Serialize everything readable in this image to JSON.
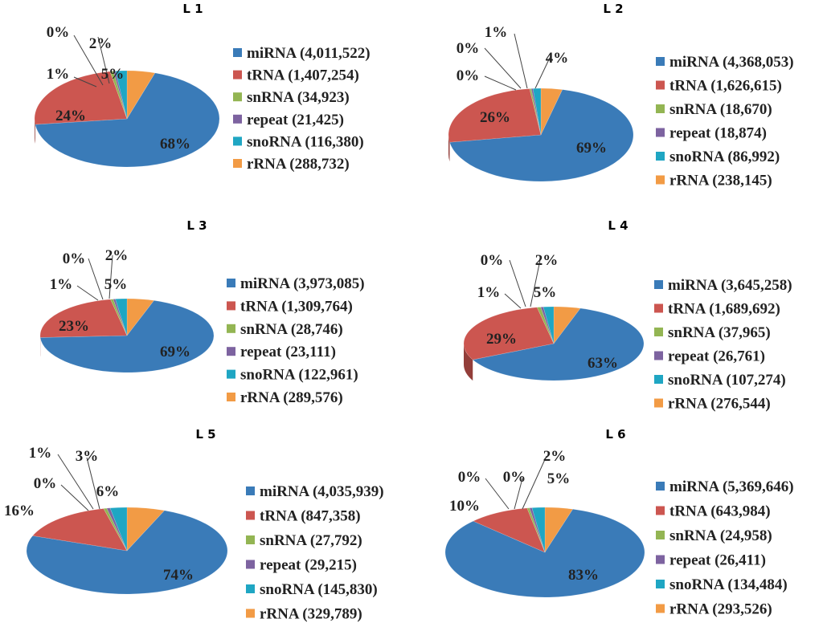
{
  "colors": {
    "miRNA": "#3a7bb8",
    "tRNA": "#cc5650",
    "snRNA": "#93b553",
    "repeat": "#7d63a0",
    "snoRNA": "#1fa6c3",
    "rRNA": "#f29b45"
  },
  "chart_data": [
    {
      "type": "pie",
      "title": "L 1",
      "series": [
        {
          "name": "miRNA",
          "value": 4011522,
          "label": "miRNA (4,011,522)",
          "pct": "68%"
        },
        {
          "name": "tRNA",
          "value": 1407254,
          "label": "tRNA (1,407,254)",
          "pct": "24%"
        },
        {
          "name": "snRNA",
          "value": 34923,
          "label": "snRNA (34,923)",
          "pct": "1%"
        },
        {
          "name": "repeat",
          "value": 21425,
          "label": "repeat (21,425)",
          "pct": "0%"
        },
        {
          "name": "snoRNA",
          "value": 116380,
          "label": "snoRNA (116,380)",
          "pct": "2%"
        },
        {
          "name": "rRNA",
          "value": 288732,
          "label": "rRNA (288,732)",
          "pct": "5%"
        }
      ]
    },
    {
      "type": "pie",
      "title": "L 2",
      "series": [
        {
          "name": "miRNA",
          "value": 4368053,
          "label": "miRNA (4,368,053)",
          "pct": "69%"
        },
        {
          "name": "tRNA",
          "value": 1626615,
          "label": "tRNA (1,626,615)",
          "pct": "26%"
        },
        {
          "name": "snRNA",
          "value": 18670,
          "label": "snRNA (18,670)",
          "pct": "0%"
        },
        {
          "name": "repeat",
          "value": 18874,
          "label": "repeat (18,874)",
          "pct": "0%"
        },
        {
          "name": "snoRNA",
          "value": 86992,
          "label": "snoRNA (86,992)",
          "pct": "1%"
        },
        {
          "name": "rRNA",
          "value": 238145,
          "label": "rRNA (238,145)",
          "pct": "4%"
        }
      ]
    },
    {
      "type": "pie",
      "title": "L 3",
      "series": [
        {
          "name": "miRNA",
          "value": 3973085,
          "label": "miRNA (3,973,085)",
          "pct": "69%"
        },
        {
          "name": "tRNA",
          "value": 1309764,
          "label": "tRNA (1,309,764)",
          "pct": "23%"
        },
        {
          "name": "snRNA",
          "value": 28746,
          "label": "snRNA (28,746)",
          "pct": "1%"
        },
        {
          "name": "repeat",
          "value": 23111,
          "label": "repeat (23,111)",
          "pct": "0%"
        },
        {
          "name": "snoRNA",
          "value": 122961,
          "label": "snoRNA (122,961)",
          "pct": "2%"
        },
        {
          "name": "rRNA",
          "value": 289576,
          "label": "rRNA (289,576)",
          "pct": "5%"
        }
      ]
    },
    {
      "type": "pie",
      "title": "L 4",
      "series": [
        {
          "name": "miRNA",
          "value": 3645258,
          "label": "miRNA (3,645,258)",
          "pct": "63%"
        },
        {
          "name": "tRNA",
          "value": 1689692,
          "label": "tRNA (1,689,692)",
          "pct": "29%"
        },
        {
          "name": "snRNA",
          "value": 37965,
          "label": "snRNA (37,965)",
          "pct": "1%"
        },
        {
          "name": "repeat",
          "value": 26761,
          "label": "repeat (26,761)",
          "pct": "0%"
        },
        {
          "name": "snoRNA",
          "value": 107274,
          "label": "snoRNA (107,274)",
          "pct": "2%"
        },
        {
          "name": "rRNA",
          "value": 276544,
          "label": "rRNA (276,544)",
          "pct": "5%"
        }
      ]
    },
    {
      "type": "pie",
      "title": "L 5",
      "series": [
        {
          "name": "miRNA",
          "value": 4035939,
          "label": "miRNA (4,035,939)",
          "pct": "74%"
        },
        {
          "name": "tRNA",
          "value": 847358,
          "label": "tRNA (847,358)",
          "pct": "16%"
        },
        {
          "name": "snRNA",
          "value": 27792,
          "label": "snRNA (27,792)",
          "pct": "0%"
        },
        {
          "name": "repeat",
          "value": 29215,
          "label": "repeat (29,215)",
          "pct": "1%"
        },
        {
          "name": "snoRNA",
          "value": 145830,
          "label": "snoRNA (145,830)",
          "pct": "3%"
        },
        {
          "name": "rRNA",
          "value": 329789,
          "label": "rRNA (329,789)",
          "pct": "6%"
        }
      ]
    },
    {
      "type": "pie",
      "title": "L 6",
      "series": [
        {
          "name": "miRNA",
          "value": 5369646,
          "label": "miRNA (5,369,646)",
          "pct": "83%"
        },
        {
          "name": "tRNA",
          "value": 643984,
          "label": "tRNA (643,984)",
          "pct": "10%"
        },
        {
          "name": "snRNA",
          "value": 24958,
          "label": "snRNA (24,958)",
          "pct": "0%"
        },
        {
          "name": "repeat",
          "value": 26411,
          "label": "repeat (26,411)",
          "pct": "0%"
        },
        {
          "name": "snoRNA",
          "value": 134484,
          "label": "snoRNA (134,484)",
          "pct": "2%"
        },
        {
          "name": "rRNA",
          "value": 293526,
          "label": "rRNA (293,526)",
          "pct": "5%"
        }
      ]
    }
  ]
}
